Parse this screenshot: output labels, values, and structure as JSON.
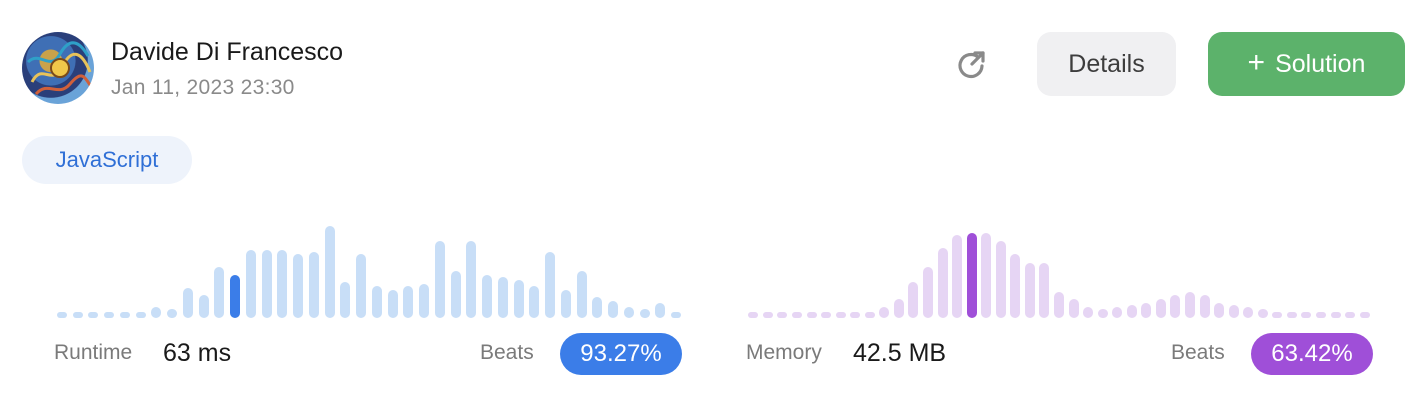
{
  "user": {
    "name": "Davide Di Francesco",
    "timestamp": "Jan 11, 2023 23:30"
  },
  "actions": {
    "share_icon": "share-icon",
    "details_label": "Details",
    "solution_label": "Solution",
    "solution_icon": "plus-icon"
  },
  "language_tag": "JavaScript",
  "runtime": {
    "label": "Runtime",
    "value": "63 ms",
    "beats_label": "Beats",
    "beats_value": "93.27%",
    "color": "#3b7de8",
    "light_color": "#c8def7"
  },
  "memory": {
    "label": "Memory",
    "value": "42.5 MB",
    "beats_label": "Beats",
    "beats_value": "63.42%",
    "color": "#9f4fd8",
    "light_color": "#e6d5f4"
  },
  "chart_data": [
    {
      "type": "bar",
      "title": "",
      "values": [
        5,
        5,
        5,
        5,
        5,
        5,
        10,
        8,
        28,
        22,
        48,
        40,
        64,
        64,
        64,
        60,
        62,
        86,
        34,
        60,
        30,
        26,
        30,
        32,
        72,
        44,
        72,
        40,
        38,
        36,
        30,
        62,
        26,
        44,
        20,
        16,
        10,
        8,
        14,
        5
      ],
      "highlight_index": 11,
      "ylim": [
        0,
        90
      ]
    },
    {
      "type": "bar",
      "title": "",
      "values": [
        5,
        5,
        5,
        5,
        5,
        5,
        5,
        5,
        5,
        10,
        18,
        34,
        48,
        66,
        78,
        80,
        80,
        72,
        60,
        52,
        52,
        24,
        18,
        10,
        8,
        10,
        12,
        14,
        18,
        22,
        24,
        22,
        14,
        12,
        10,
        8,
        6,
        6,
        6,
        6,
        6,
        6,
        6
      ],
      "highlight_index": 15,
      "ylim": [
        0,
        90
      ]
    }
  ]
}
